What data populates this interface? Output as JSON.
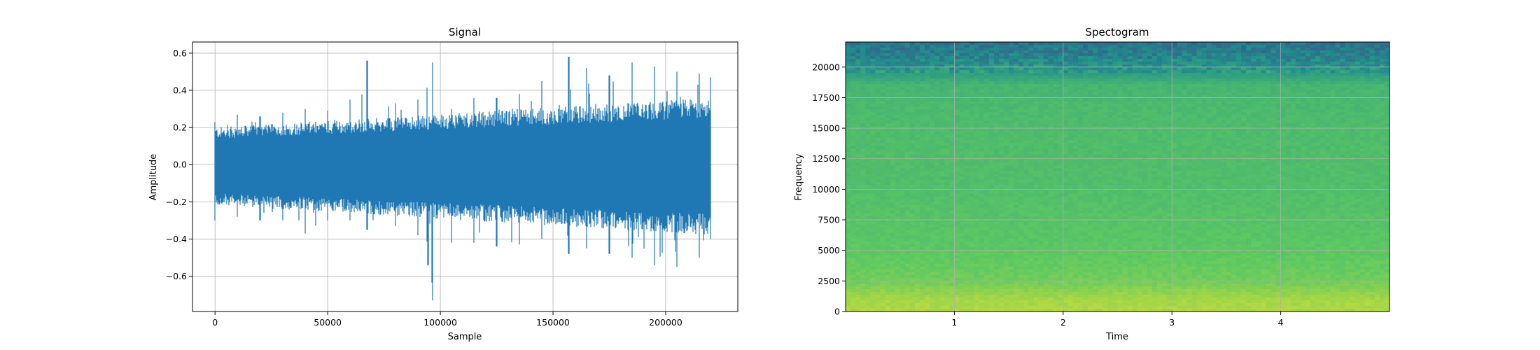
{
  "chart_data": [
    {
      "type": "line",
      "title": "Signal",
      "xlabel": "Sample",
      "ylabel": "Amplitude",
      "xlim": [
        -10000,
        232000
      ],
      "ylim": [
        -0.79,
        0.66
      ],
      "xticks": [
        0,
        50000,
        100000,
        150000,
        200000
      ],
      "xtick_labels": [
        "0",
        "50000",
        "100000",
        "150000",
        "200000"
      ],
      "yticks": [
        0.6,
        0.4,
        0.2,
        0.0,
        -0.2,
        -0.4,
        -0.6
      ],
      "ytick_labels": [
        "0.6",
        "0.4",
        "0.2",
        "0.0",
        "−0.2",
        "−0.4",
        "−0.6"
      ],
      "grid": true,
      "color": "#1f77b4",
      "series": [
        {
          "x": [
            0,
            10000,
            20000,
            30000,
            40000,
            50000,
            60000,
            67500,
            80000,
            90000,
            96500,
            105000,
            115000,
            125000,
            135000,
            145000,
            157000,
            165000,
            175000,
            185000,
            195000,
            205000,
            215000,
            220000
          ],
          "max": [
            0.23,
            0.27,
            0.26,
            0.28,
            0.3,
            0.29,
            0.35,
            0.56,
            0.33,
            0.35,
            0.55,
            0.3,
            0.36,
            0.36,
            0.38,
            0.45,
            0.58,
            0.52,
            0.48,
            0.55,
            0.53,
            0.5,
            0.49,
            0.47
          ],
          "min": [
            -0.3,
            -0.28,
            -0.3,
            -0.3,
            -0.37,
            -0.3,
            -0.3,
            -0.35,
            -0.33,
            -0.38,
            -0.73,
            -0.42,
            -0.42,
            -0.44,
            -0.43,
            -0.4,
            -0.48,
            -0.45,
            -0.48,
            -0.5,
            -0.54,
            -0.55,
            -0.5,
            -0.4
          ]
        }
      ]
    },
    {
      "type": "heatmap",
      "title": "Spectogram",
      "xlabel": "Time",
      "ylabel": "Frequency",
      "xlim": [
        0,
        5
      ],
      "ylim": [
        0,
        22050
      ],
      "xticks": [
        1,
        2,
        3,
        4
      ],
      "xtick_labels": [
        "1",
        "2",
        "3",
        "4"
      ],
      "yticks": [
        0,
        2500,
        5000,
        7500,
        10000,
        12500,
        15000,
        17500,
        20000
      ],
      "ytick_labels": [
        "0",
        "2500",
        "5000",
        "7500",
        "10000",
        "12500",
        "15000",
        "17500",
        "20000"
      ],
      "grid": true,
      "colormap": "viridis",
      "power_profile": [
        {
          "frequency": 0,
          "level": 0.88
        },
        {
          "frequency": 1000,
          "level": 0.86
        },
        {
          "frequency": 2500,
          "level": 0.78
        },
        {
          "frequency": 5000,
          "level": 0.74
        },
        {
          "frequency": 10000,
          "level": 0.7
        },
        {
          "frequency": 15000,
          "level": 0.69
        },
        {
          "frequency": 18500,
          "level": 0.66
        },
        {
          "frequency": 19500,
          "level": 0.55
        },
        {
          "frequency": 20500,
          "level": 0.47
        },
        {
          "frequency": 22050,
          "level": 0.38
        }
      ]
    }
  ]
}
